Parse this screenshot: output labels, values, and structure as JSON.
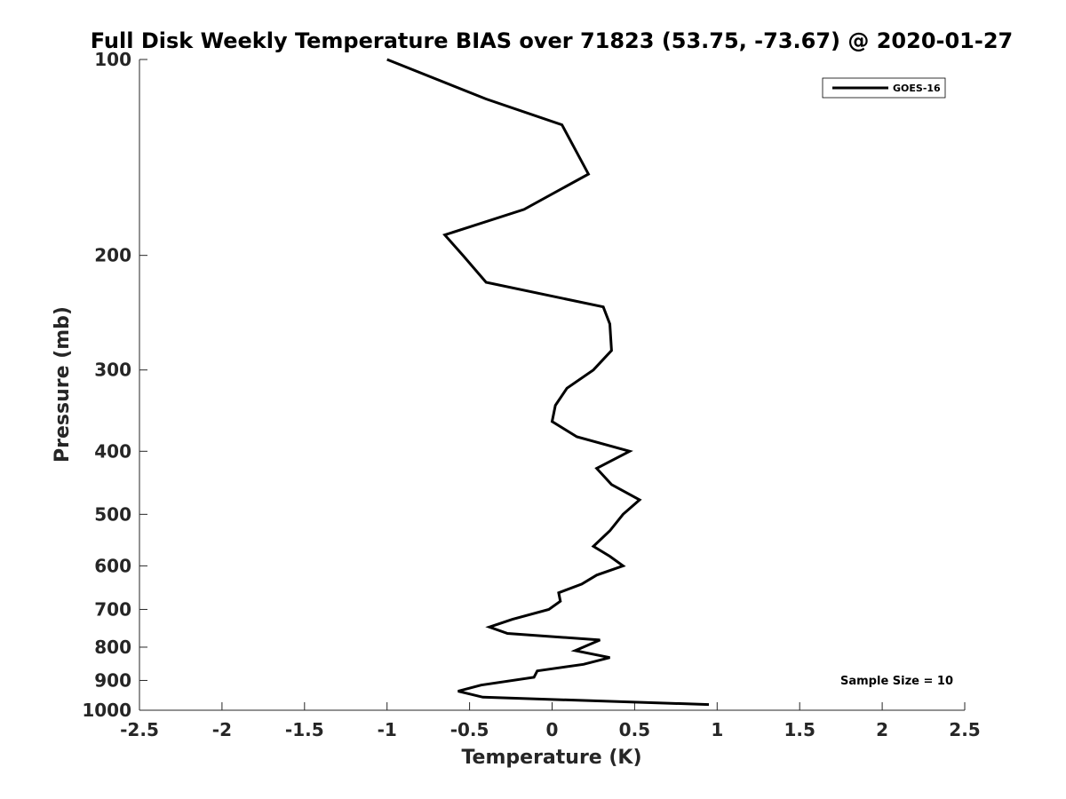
{
  "chart_data": {
    "type": "line",
    "title": "Full Disk Weekly Temperature BIAS over 71823 (53.75, -73.67) @ 2020-01-27",
    "xlabel": "Temperature (K)",
    "ylabel": "Pressure (mb)",
    "xlim": [
      -2.5,
      2.5
    ],
    "ylim": [
      100,
      1000
    ],
    "y_scale": "log",
    "y_reversed": true,
    "grid": false,
    "x_ticks": [
      -2.5,
      -2,
      -1.5,
      -1,
      -0.5,
      0,
      0.5,
      1,
      1.5,
      2,
      2.5
    ],
    "x_tick_labels": [
      "-2.5",
      "-2",
      "-1.5",
      "-1",
      "-0.5",
      "0",
      "0.5",
      "1",
      "1.5",
      "2",
      "2.5"
    ],
    "y_ticks": [
      100,
      200,
      300,
      400,
      500,
      600,
      700,
      800,
      900,
      1000
    ],
    "y_tick_labels": [
      "100",
      "200",
      "300",
      "400",
      "500",
      "600",
      "700",
      "800",
      "900",
      "1000"
    ],
    "legend_placement": "top-right",
    "annotation": "Sample Size = 10",
    "series": [
      {
        "name": "GOES-16",
        "color": "#000000",
        "points": [
          {
            "x": -1.0,
            "y": 100
          },
          {
            "x": -0.4,
            "y": 115
          },
          {
            "x": 0.06,
            "y": 126
          },
          {
            "x": 0.22,
            "y": 150
          },
          {
            "x": -0.17,
            "y": 170
          },
          {
            "x": -0.65,
            "y": 186
          },
          {
            "x": -0.54,
            "y": 200
          },
          {
            "x": -0.4,
            "y": 220
          },
          {
            "x": 0.31,
            "y": 240
          },
          {
            "x": 0.35,
            "y": 255
          },
          {
            "x": 0.36,
            "y": 280
          },
          {
            "x": 0.25,
            "y": 300
          },
          {
            "x": 0.09,
            "y": 320
          },
          {
            "x": 0.02,
            "y": 340
          },
          {
            "x": 0.0,
            "y": 360
          },
          {
            "x": 0.15,
            "y": 380
          },
          {
            "x": 0.47,
            "y": 400
          },
          {
            "x": 0.27,
            "y": 425
          },
          {
            "x": 0.36,
            "y": 450
          },
          {
            "x": 0.53,
            "y": 475
          },
          {
            "x": 0.43,
            "y": 500
          },
          {
            "x": 0.35,
            "y": 530
          },
          {
            "x": 0.25,
            "y": 560
          },
          {
            "x": 0.35,
            "y": 580
          },
          {
            "x": 0.43,
            "y": 600
          },
          {
            "x": 0.27,
            "y": 620
          },
          {
            "x": 0.18,
            "y": 640
          },
          {
            "x": 0.04,
            "y": 660
          },
          {
            "x": 0.05,
            "y": 680
          },
          {
            "x": -0.02,
            "y": 700
          },
          {
            "x": -0.24,
            "y": 725
          },
          {
            "x": -0.38,
            "y": 745
          },
          {
            "x": -0.27,
            "y": 762
          },
          {
            "x": 0.29,
            "y": 780
          },
          {
            "x": 0.14,
            "y": 810
          },
          {
            "x": 0.35,
            "y": 830
          },
          {
            "x": 0.19,
            "y": 850
          },
          {
            "x": -0.09,
            "y": 870
          },
          {
            "x": -0.11,
            "y": 890
          },
          {
            "x": -0.43,
            "y": 915
          },
          {
            "x": -0.57,
            "y": 935
          },
          {
            "x": -0.42,
            "y": 955
          },
          {
            "x": 0.95,
            "y": 980
          }
        ]
      }
    ]
  }
}
